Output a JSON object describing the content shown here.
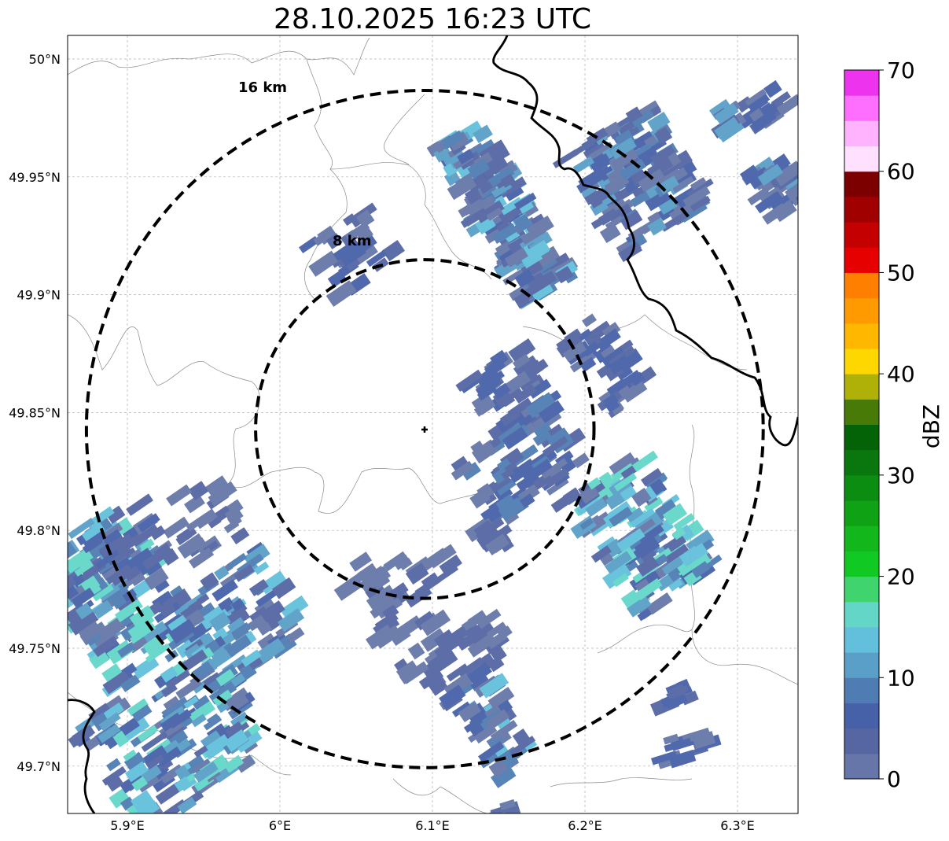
{
  "title": "28.10.2025 16:23 UTC",
  "map": {
    "lon_range": [
      5.86,
      6.34
    ],
    "lat_range": [
      49.68,
      50.01
    ],
    "gridlines": true,
    "lat_ticks": [
      {
        "value": 50.0,
        "label": "50°N"
      },
      {
        "value": 49.95,
        "label": "49.95°N"
      },
      {
        "value": 49.9,
        "label": "49.9°N"
      },
      {
        "value": 49.85,
        "label": "49.85°N"
      },
      {
        "value": 49.8,
        "label": "49.8°N"
      },
      {
        "value": 49.75,
        "label": "49.75°N"
      },
      {
        "value": 49.7,
        "label": "49.7°N"
      }
    ],
    "lon_ticks": [
      {
        "value": 5.9,
        "label": "5.9°E"
      },
      {
        "value": 6.0,
        "label": "6°E"
      },
      {
        "value": 6.1,
        "label": "6.1°E"
      },
      {
        "value": 6.2,
        "label": "6.2°E"
      },
      {
        "value": 6.3,
        "label": "6.3°E"
      }
    ],
    "center": {
      "lon": 6.095,
      "lat": 49.843
    },
    "range_rings": [
      {
        "radius_km": 8,
        "label": "8 km"
      },
      {
        "radius_km": 16,
        "label": "16 km"
      }
    ]
  },
  "colorbar": {
    "label": "dBZ",
    "ticks": [
      "0",
      "10",
      "20",
      "30",
      "40",
      "50",
      "60",
      "70"
    ],
    "colors": [
      "#6676a8",
      "#5566a3",
      "#4661a8",
      "#4f7db3",
      "#5a9fc8",
      "#63c0dc",
      "#63d6c8",
      "#3fd46e",
      "#11c923",
      "#12b71b",
      "#0fa215",
      "#0b8d11",
      "#09770d",
      "#056307",
      "#487a07",
      "#afb109",
      "#ffd700",
      "#ffb700",
      "#ff9a00",
      "#ff7f00",
      "#e60000",
      "#c40000",
      "#a10000",
      "#7d0000",
      "#ffe0ff",
      "#ffb3ff",
      "#ff6fff",
      "#ee33ee"
    ]
  }
}
